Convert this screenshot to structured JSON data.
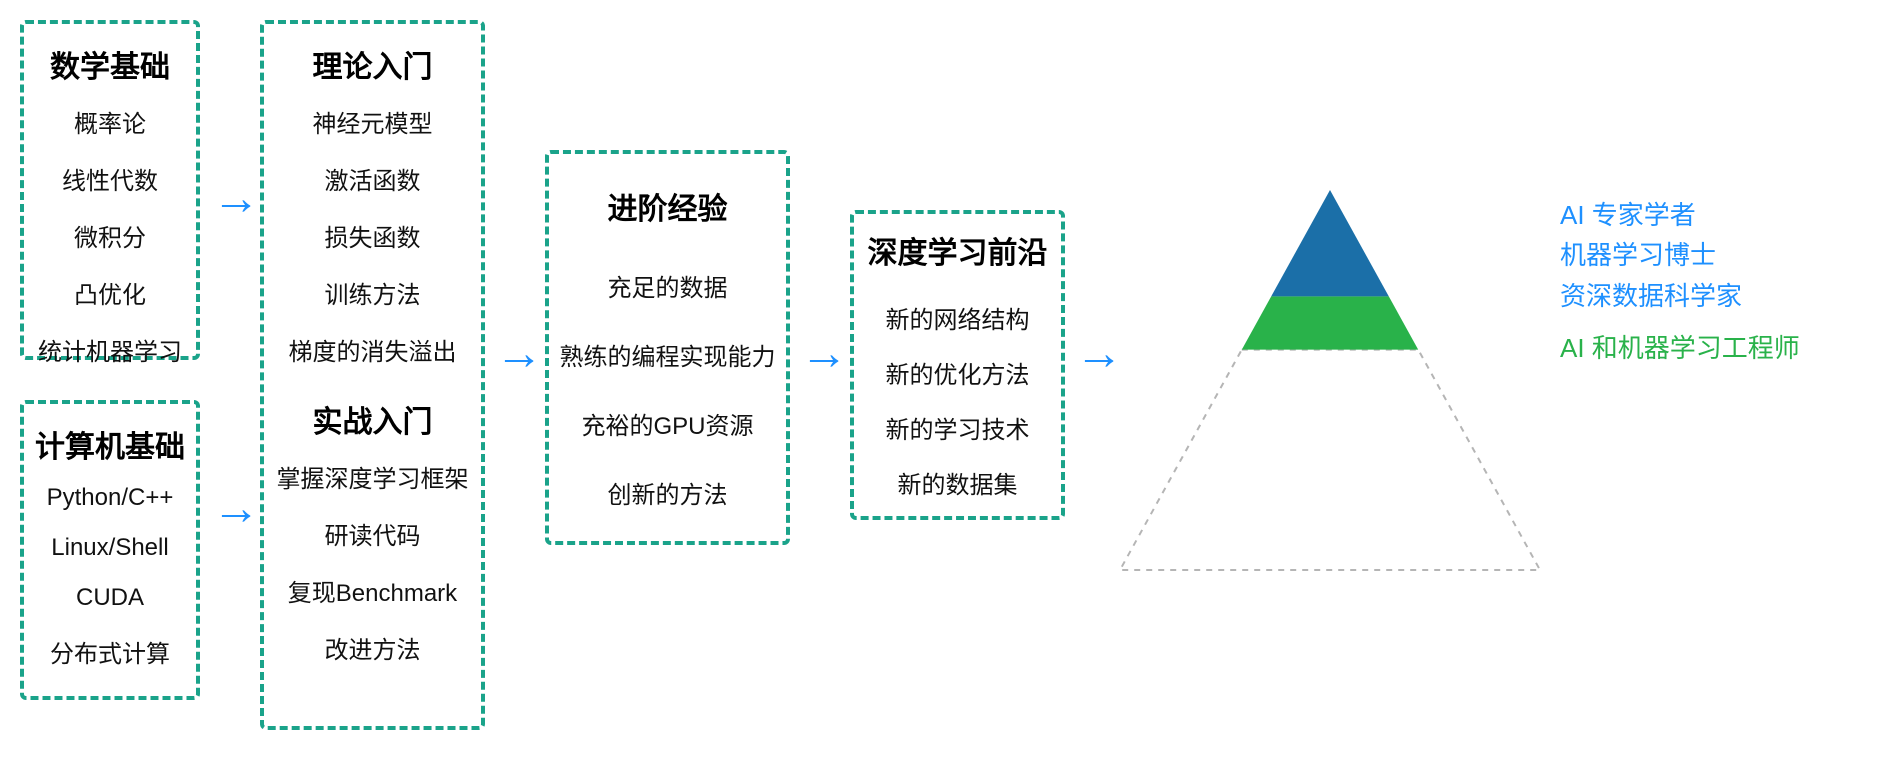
{
  "diagram": {
    "type": "flowchart",
    "border_color": "#1aa38a",
    "arrow_color": "#1e90ff",
    "background_color": "#ffffff",
    "title_fontsize": 30,
    "item_fontsize": 24,
    "label_fontsize": 26
  },
  "col1": {
    "box_a": {
      "title": "数学基础",
      "items": [
        "概率论",
        "线性代数",
        "微积分",
        "凸优化",
        "统计机器学习"
      ]
    },
    "box_b": {
      "title": "计算机基础",
      "items": [
        "Python/C++",
        "Linux/Shell",
        "CUDA",
        "分布式计算"
      ]
    }
  },
  "col2": {
    "box": {
      "title_a": "理论入门",
      "items_a": [
        "神经元模型",
        "激活函数",
        "损失函数",
        "训练方法",
        "梯度的消失溢出"
      ],
      "title_b": "实战入门",
      "items_b": [
        "掌握深度学习框架",
        "研读代码",
        "复现Benchmark",
        "改进方法"
      ]
    }
  },
  "col3": {
    "box": {
      "title": "进阶经验",
      "items": [
        "充足的数据",
        "熟练的编程实现能力",
        "充裕的GPU资源",
        "创新的方法"
      ]
    }
  },
  "col4": {
    "box": {
      "title": "深度学习前沿",
      "items": [
        "新的网络结构",
        "新的优化方法",
        "新的学习技术",
        "新的数据集"
      ]
    }
  },
  "pyramid": {
    "top_color": "#1b6fa8",
    "mid_color": "#29b24a",
    "bottom_color": "#ffffff",
    "outline_color": "#b5b5b5",
    "labels_blue": [
      "AI 专家学者",
      "机器学习博士",
      "资深数据科学家"
    ],
    "label_green": "AI 和机器学习工程师",
    "label_blue_color": "#1e90ff",
    "label_green_color": "#29b24a"
  }
}
